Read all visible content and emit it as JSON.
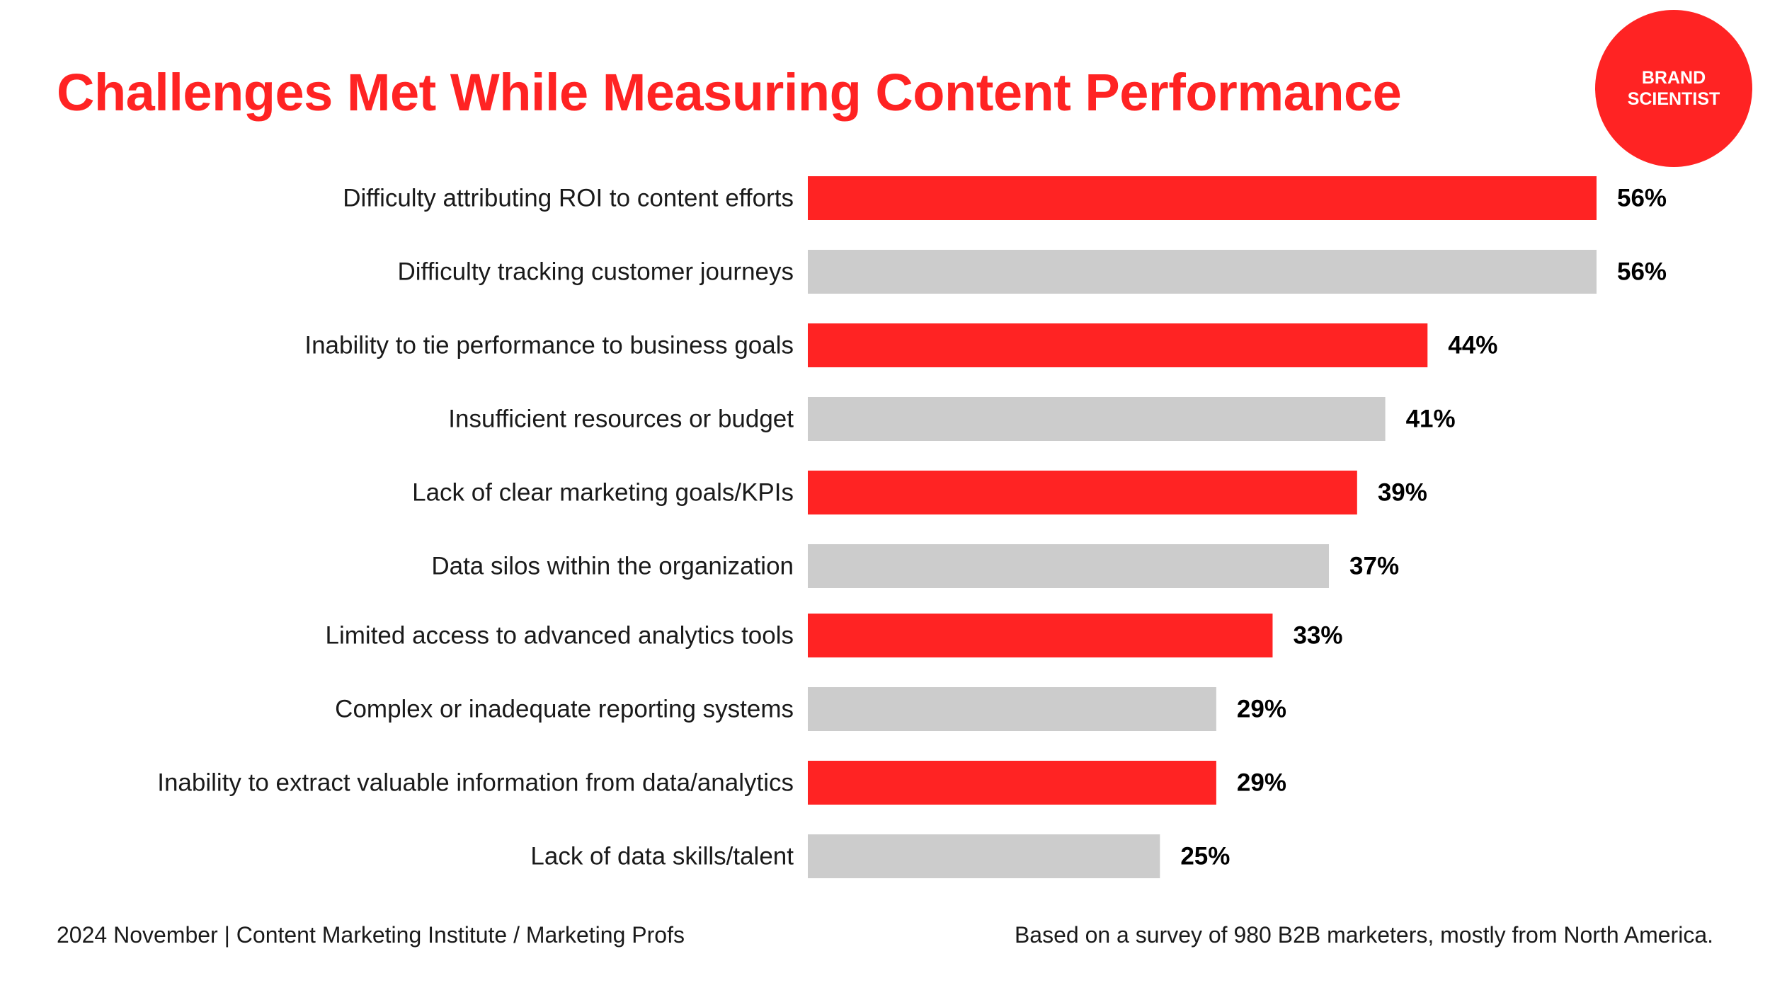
{
  "title": "Challenges Met While Measuring Content Performance",
  "brand": {
    "line1": "BRAND",
    "line2": "SCIENTIST"
  },
  "colors": {
    "accent": "#ff2323",
    "neutral": "#cccccc",
    "text": "#1a1a1a"
  },
  "chart_data": {
    "type": "bar",
    "orientation": "horizontal",
    "categories": [
      "Difficulty attributing ROI to content efforts",
      "Difficulty tracking customer journeys",
      "Inability to tie performance to business goals",
      "Insufficient resources or budget",
      "Lack of clear marketing goals/KPIs",
      "Data silos within the organization",
      "Limited access to advanced analytics tools",
      "Complex or inadequate reporting systems",
      "Inability to extract valuable information from data/analytics",
      "Lack of data skills/talent"
    ],
    "values": [
      56,
      56,
      44,
      41,
      39,
      37,
      33,
      29,
      29,
      25
    ],
    "value_labels": [
      "56%",
      "56%",
      "44%",
      "41%",
      "39%",
      "37%",
      "33%",
      "29%",
      "29%",
      "25%"
    ],
    "bar_colors": [
      "#ff2323",
      "#cccccc",
      "#ff2323",
      "#cccccc",
      "#ff2323",
      "#cccccc",
      "#ff2323",
      "#cccccc",
      "#ff2323",
      "#cccccc"
    ],
    "unit": "%",
    "grid": false,
    "legend": "none"
  },
  "footer": {
    "left": "2024 November  |  Content Marketing Institute / Marketing Profs",
    "right": "Based on a survey of 980 B2B marketers, mostly from North America."
  }
}
